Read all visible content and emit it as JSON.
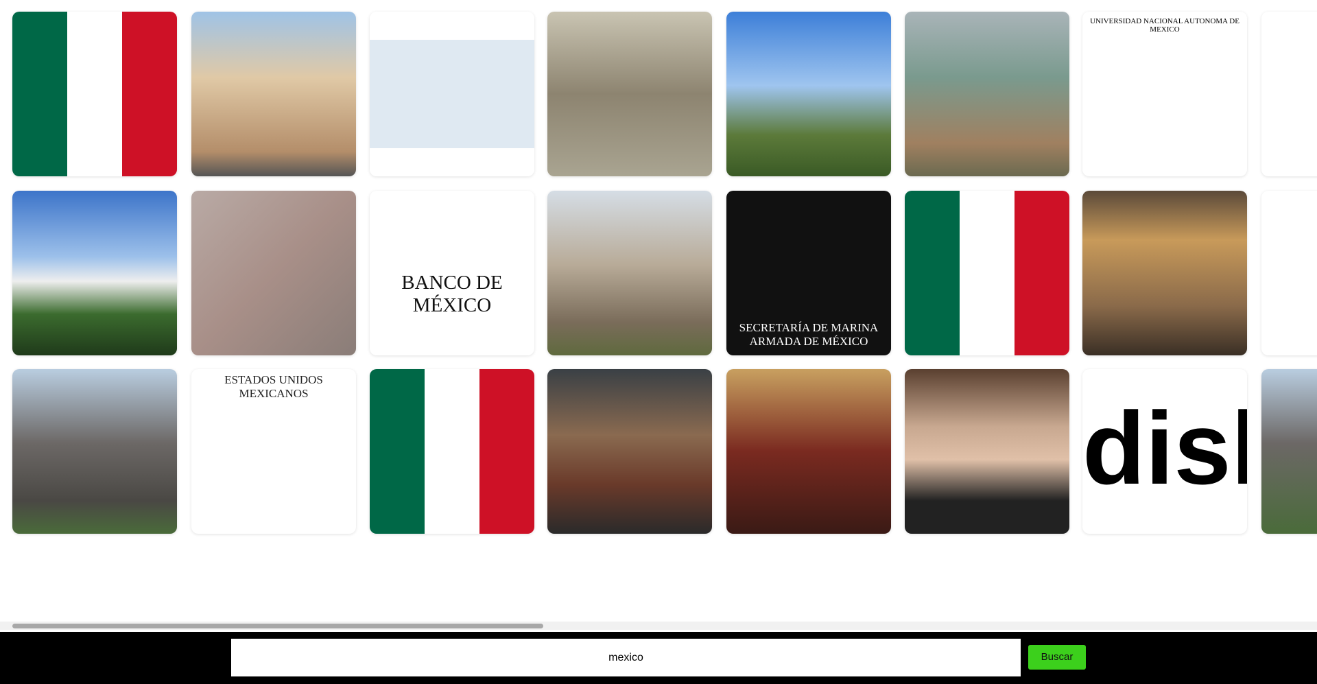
{
  "gallery": {
    "texts": {
      "unam": "UNIVERSIDAD NACIONAL AUTONOMA DE MEXICO",
      "banco": "BANCO DE MÉXICO",
      "marina": "SECRETARÍA DE MARINA",
      "marina2": "ARMADA DE MÉXICO",
      "seal": "ESTADOS UNIDOS MEXICANOS",
      "dish": "dish"
    }
  },
  "search": {
    "query": "mexico",
    "button": "Buscar"
  }
}
